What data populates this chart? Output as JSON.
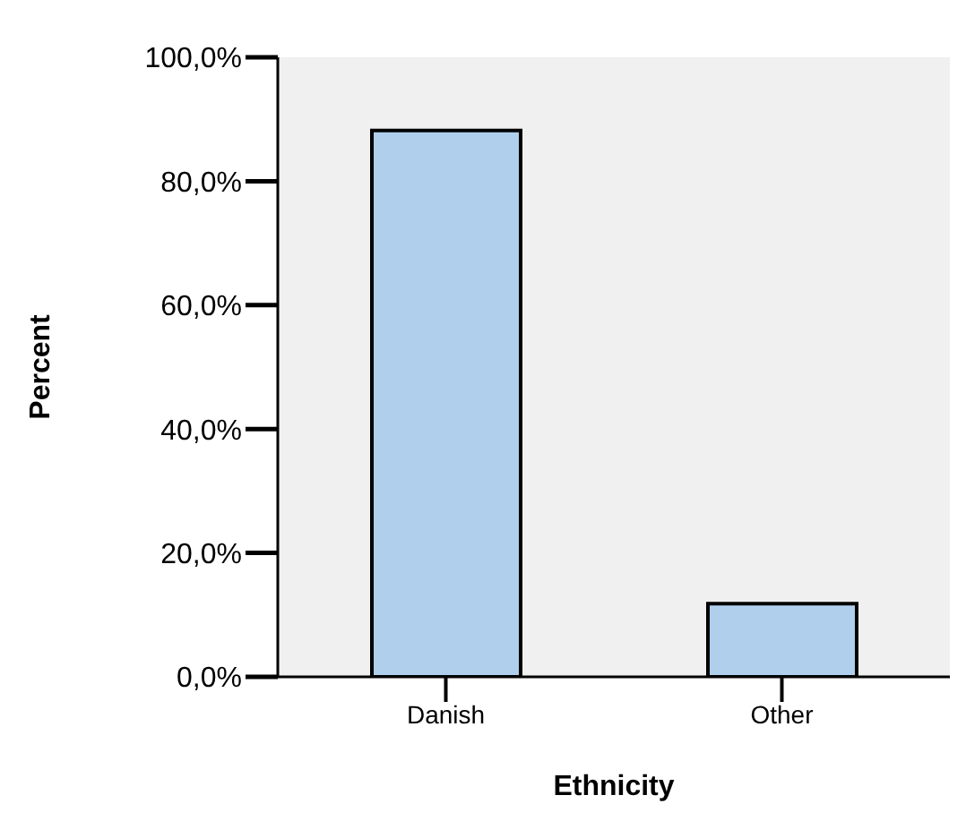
{
  "chart_data": {
    "type": "bar",
    "xlabel": "Ethnicity",
    "ylabel": "Percent",
    "categories": [
      "Danish",
      "Other"
    ],
    "values": [
      88.2,
      11.8
    ],
    "color": "#afcfed",
    "ylim": [
      0,
      100
    ],
    "yticks": [
      {
        "value": 0,
        "label": "0,0%"
      },
      {
        "value": 20,
        "label": "20,0%"
      },
      {
        "value": 40,
        "label": "40,0%"
      },
      {
        "value": 60,
        "label": "60,0%"
      },
      {
        "value": 80,
        "label": "80,0%"
      },
      {
        "value": 100,
        "label": "100,0%"
      }
    ],
    "grid": false
  }
}
